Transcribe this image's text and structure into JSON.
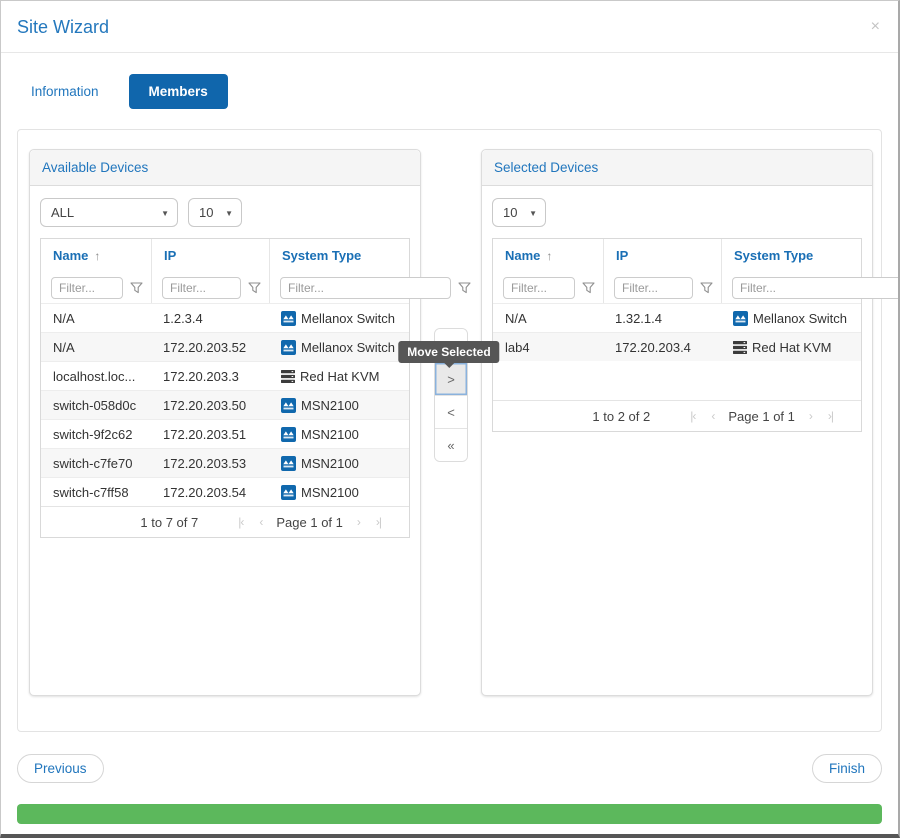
{
  "window": {
    "title": "Site Wizard",
    "close_icon": "×"
  },
  "tabs": [
    {
      "label": "Information",
      "active": false
    },
    {
      "label": "Members",
      "active": true
    }
  ],
  "available": {
    "title": "Available Devices",
    "type_filter_value": "ALL",
    "page_size_value": "10",
    "columns": [
      "Name",
      "IP",
      "System Type"
    ],
    "sort_column": "Name",
    "sort_direction": "asc",
    "filter_placeholder": "Filter...",
    "rows": [
      {
        "name": "N/A",
        "ip": "1.2.3.4",
        "type": "Mellanox Switch",
        "icon": "mellanox-switch"
      },
      {
        "name": "N/A",
        "ip": "172.20.203.52",
        "type": "Mellanox Switch",
        "icon": "mellanox-switch"
      },
      {
        "name": "localhost.loc...",
        "ip": "172.20.203.3",
        "type": "Red Hat KVM",
        "icon": "redhat-kvm"
      },
      {
        "name": "switch-058d0c",
        "ip": "172.20.203.50",
        "type": "MSN2100",
        "icon": "mellanox-switch"
      },
      {
        "name": "switch-9f2c62",
        "ip": "172.20.203.51",
        "type": "MSN2100",
        "icon": "mellanox-switch"
      },
      {
        "name": "switch-c7fe70",
        "ip": "172.20.203.53",
        "type": "MSN2100",
        "icon": "mellanox-switch"
      },
      {
        "name": "switch-c7ff58",
        "ip": "172.20.203.54",
        "type": "MSN2100",
        "icon": "mellanox-switch"
      }
    ],
    "pagination": {
      "range": "1 to 7 of 7",
      "page": "Page 1 of 1"
    }
  },
  "selected": {
    "title": "Selected Devices",
    "page_size_value": "10",
    "columns": [
      "Name",
      "IP",
      "System Type"
    ],
    "sort_column": "Name",
    "sort_direction": "asc",
    "filter_placeholder": "Filter...",
    "rows": [
      {
        "name": "N/A",
        "ip": "1.32.1.4",
        "type": "Mellanox Switch",
        "icon": "mellanox-switch"
      },
      {
        "name": "lab4",
        "ip": "172.20.203.4",
        "type": "Red Hat KVM",
        "icon": "redhat-kvm"
      }
    ],
    "pagination": {
      "range": "1 to 2 of 2",
      "page": "Page 1 of 1"
    }
  },
  "transfer": {
    "tooltip": "Move Selected",
    "buttons": [
      {
        "glyph": "»",
        "action": "move-all-right"
      },
      {
        "glyph": ">",
        "action": "move-selected-right",
        "active": true
      },
      {
        "glyph": "<",
        "action": "move-selected-left"
      },
      {
        "glyph": "«",
        "action": "move-all-left"
      }
    ]
  },
  "ui": {
    "sort_arrow": "↑",
    "select_caret": "▼",
    "pagination_glyphs": {
      "first": "|‹",
      "prev": "‹",
      "next": "›",
      "last": "›|"
    }
  },
  "footer": {
    "previous_label": "Previous",
    "finish_label": "Finish"
  },
  "progress": {
    "percent": 100,
    "color": "#5cb85c"
  },
  "colors": {
    "accent_blue": "#2176bd",
    "active_tab_blue": "#1066ac",
    "progress_green": "#5cb85c",
    "tooltip_gray": "#565656"
  }
}
